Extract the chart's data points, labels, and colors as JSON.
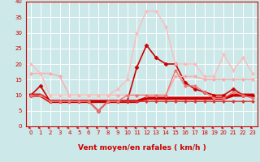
{
  "xlabel": "Vent moyen/en rafales ( km/h )",
  "xlim": [
    -0.5,
    23.5
  ],
  "ylim": [
    0,
    40
  ],
  "yticks": [
    0,
    5,
    10,
    15,
    20,
    25,
    30,
    35,
    40
  ],
  "xticks": [
    0,
    1,
    2,
    3,
    4,
    5,
    6,
    7,
    8,
    9,
    10,
    11,
    12,
    13,
    14,
    15,
    16,
    17,
    18,
    19,
    20,
    21,
    22,
    23
  ],
  "bg_color": "#cce8e8",
  "grid_color": "#ffffff",
  "lines": [
    {
      "y": [
        10,
        10,
        8,
        8,
        8,
        8,
        8,
        8,
        8,
        8,
        8,
        8,
        9,
        9,
        9,
        9,
        9,
        9,
        9,
        9,
        9,
        10,
        10,
        10
      ],
      "color": "#cc0000",
      "lw": 2.8,
      "marker": null,
      "ms": 0
    },
    {
      "y": [
        10,
        13,
        8,
        8,
        8,
        8,
        8,
        5,
        8,
        8,
        8,
        19,
        26,
        22,
        20,
        20,
        14,
        12,
        11,
        10,
        10,
        12,
        10,
        10
      ],
      "color": "#cc0000",
      "lw": 1.2,
      "marker": "D",
      "ms": 2.5
    },
    {
      "y": [
        10,
        10,
        8,
        8,
        8,
        8,
        8,
        5,
        8,
        8,
        8,
        8,
        8,
        8,
        8,
        8,
        8,
        8,
        8,
        8,
        8,
        8,
        8,
        8
      ],
      "color": "#dd3333",
      "lw": 1.0,
      "marker": "D",
      "ms": 2.0
    },
    {
      "y": [
        17,
        17,
        17,
        16,
        10,
        10,
        10,
        10,
        10,
        10,
        10,
        10,
        10,
        10,
        10,
        16,
        16,
        16,
        15,
        15,
        15,
        15,
        15,
        15
      ],
      "color": "#ffaaaa",
      "lw": 1.0,
      "marker": "D",
      "ms": 2.0
    },
    {
      "y": [
        20,
        17,
        10,
        10,
        10,
        10,
        10,
        10,
        10,
        12,
        15,
        30,
        37,
        37,
        32,
        20,
        20,
        20,
        16,
        16,
        23,
        18,
        22,
        17
      ],
      "color": "#ffbbbb",
      "lw": 1.0,
      "marker": "D",
      "ms": 2.0
    },
    {
      "y": [
        10,
        10,
        8,
        8,
        8,
        8,
        8,
        5,
        8,
        8,
        10,
        10,
        10,
        10,
        10,
        18,
        13,
        13,
        11,
        9,
        9,
        11,
        10,
        9
      ],
      "color": "#ee7777",
      "lw": 1.0,
      "marker": "D",
      "ms": 2.0
    }
  ],
  "arrow_color": "#cc0000",
  "xlabel_color": "#cc0000",
  "tick_color": "#cc0000",
  "xlabel_fontsize": 6.5,
  "tick_fontsize": 5.0
}
